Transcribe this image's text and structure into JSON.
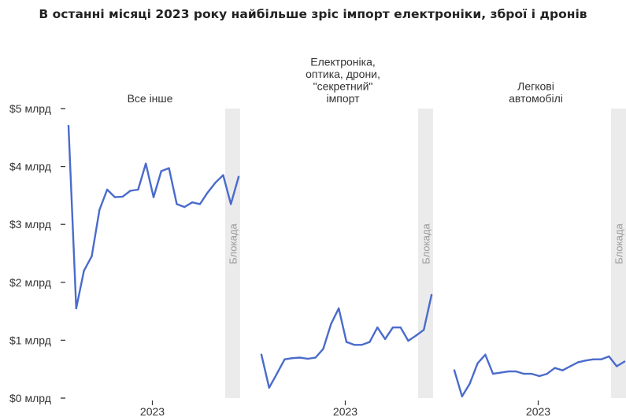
{
  "title": "В останні місяці 2023 року найбільше зріс імпорт електроніки, зброї і дронів",
  "chart_data": {
    "type": "line",
    "x_label": "2023",
    "y_axis": {
      "min": 0,
      "max": 5,
      "ticks": [
        0,
        1,
        2,
        3,
        4,
        5
      ],
      "tick_labels": [
        "$0 млрд",
        "$1 млрд",
        "$2 млрд",
        "$3 млрд",
        "$4 млрд",
        "$5 млрд"
      ],
      "unit": "$ млрд"
    },
    "band_label": "Блокада",
    "line_color": "#4a6bcb",
    "band_color": "#ebebeb",
    "panels": [
      {
        "title_lines": [
          "Все інше"
        ],
        "values": [
          4.7,
          1.55,
          2.2,
          2.45,
          3.25,
          3.6,
          3.47,
          3.48,
          3.58,
          3.6,
          4.05,
          3.47,
          3.92,
          3.97,
          3.35,
          3.3,
          3.38,
          3.35,
          3.55,
          3.72,
          3.85,
          3.35,
          3.82
        ]
      },
      {
        "title_lines": [
          "Електроніка,",
          "оптика, дрони,",
          "\"секретний\"",
          "імпорт"
        ],
        "values": [
          0.75,
          0.18,
          0.42,
          0.67,
          0.69,
          0.7,
          0.68,
          0.7,
          0.85,
          1.28,
          1.55,
          0.97,
          0.92,
          0.92,
          0.97,
          1.22,
          1.02,
          1.22,
          1.22,
          0.99,
          1.08,
          1.18,
          1.78
        ]
      },
      {
        "title_lines": [
          "Легкові",
          "автомобілі"
        ],
        "values": [
          0.48,
          0.03,
          0.25,
          0.6,
          0.75,
          0.42,
          0.44,
          0.46,
          0.46,
          0.42,
          0.42,
          0.38,
          0.42,
          0.52,
          0.48,
          0.55,
          0.62,
          0.65,
          0.67,
          0.67,
          0.72,
          0.55,
          0.63
        ]
      }
    ]
  }
}
